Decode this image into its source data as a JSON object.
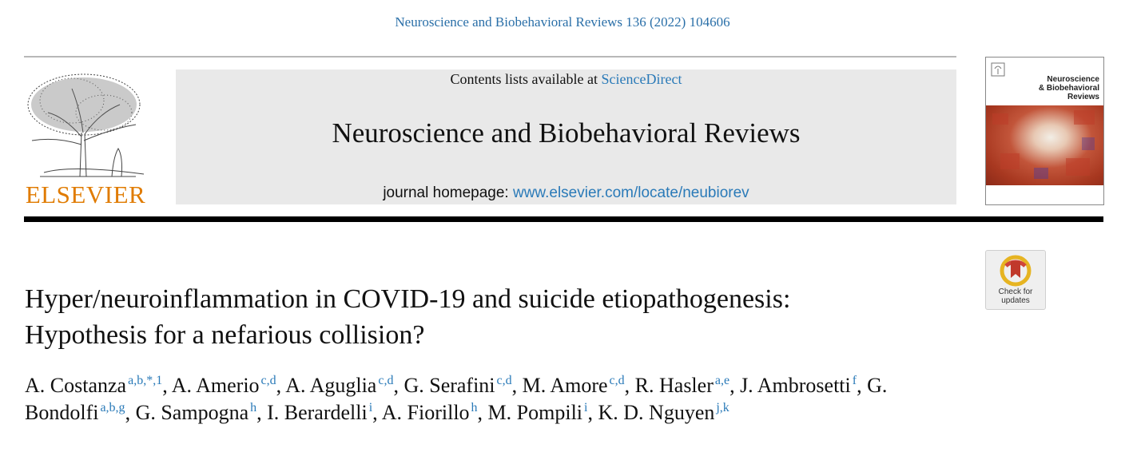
{
  "citation": "Neuroscience and Biobehavioral Reviews 136 (2022) 104606",
  "masthead": {
    "contents_prefix": "Contents lists available at ",
    "contents_link": "ScienceDirect",
    "journal_name": "Neuroscience and Biobehavioral Reviews",
    "homepage_prefix": "journal homepage: ",
    "homepage_link": "www.elsevier.com/locate/neubiorev"
  },
  "logo": {
    "wordmark": "ELSEVIER"
  },
  "cover": {
    "title_lines": [
      "Neuroscience",
      "& Biobehavioral",
      "Reviews"
    ]
  },
  "badge": {
    "line1": "Check for",
    "line2": "updates"
  },
  "title": {
    "line1": "Hyper/neuroinflammation in COVID-19 and suicide etiopathogenesis:",
    "line2": "Hypothesis for a nefarious collision?"
  },
  "authors": [
    {
      "name": "A. Costanza",
      "aff": "a,b,*,1",
      "sep": ", "
    },
    {
      "name": "A. Amerio",
      "aff": "c,d",
      "sep": ", "
    },
    {
      "name": "A. Aguglia",
      "aff": "c,d",
      "sep": ", "
    },
    {
      "name": "G. Serafini",
      "aff": "c,d",
      "sep": ", "
    },
    {
      "name": "M. Amore",
      "aff": "c,d",
      "sep": ", "
    },
    {
      "name": "R. Hasler",
      "aff": "a,e",
      "sep": ", "
    },
    {
      "name": "J. Ambrosetti",
      "aff": "f",
      "sep": ", "
    },
    {
      "name": "G. Bondolfi",
      "aff": "a,b,g",
      "sep": ", "
    },
    {
      "name": "G. Sampogna",
      "aff": "h",
      "sep": ", "
    },
    {
      "name": "I. Berardelli",
      "aff": "i",
      "sep": ", "
    },
    {
      "name": "A. Fiorillo",
      "aff": "h",
      "sep": ", "
    },
    {
      "name": "M. Pompili",
      "aff": "i",
      "sep": ", "
    },
    {
      "name": "K. D. Nguyen",
      "aff": "j,k",
      "sep": ""
    }
  ],
  "colors": {
    "link": "#2a7ab8",
    "elsevier_orange": "#e07b00",
    "rule": "#000000"
  }
}
